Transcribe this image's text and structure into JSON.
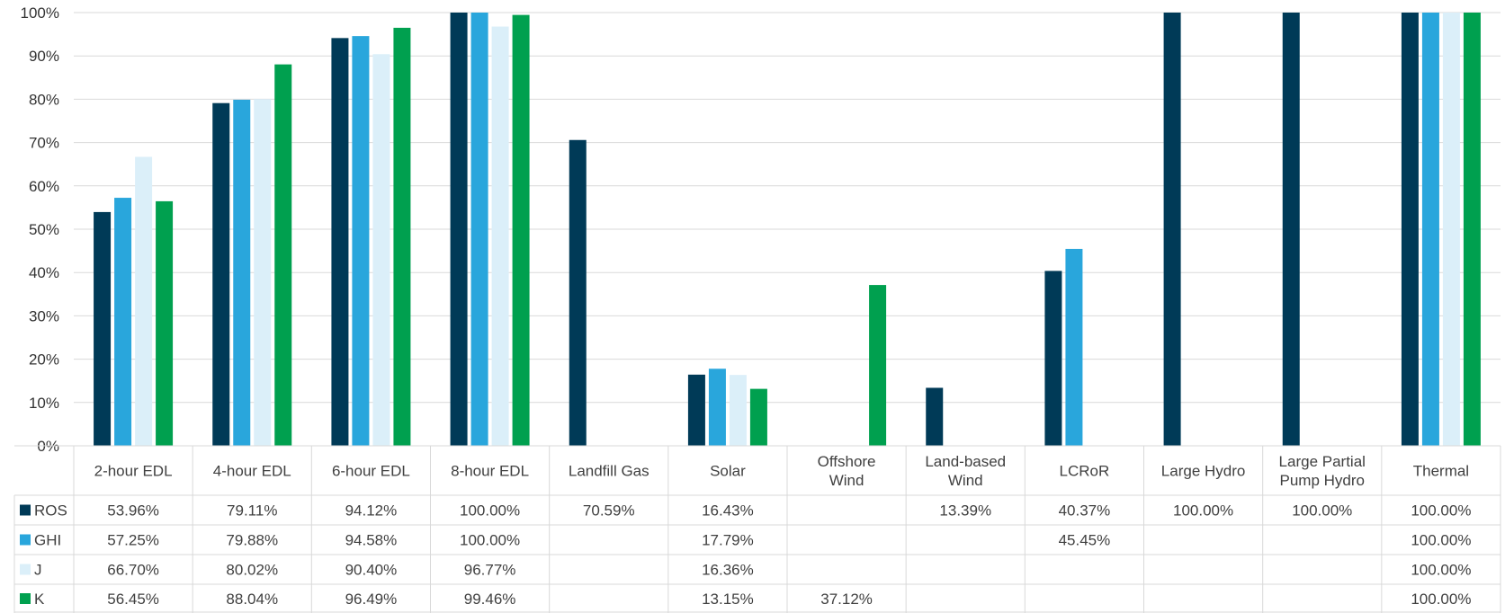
{
  "chart_data": {
    "type": "bar",
    "ylim": [
      0,
      100
    ],
    "y_ticks": [
      "0%",
      "10%",
      "20%",
      "30%",
      "40%",
      "50%",
      "60%",
      "70%",
      "80%",
      "90%",
      "100%"
    ],
    "grid": true,
    "legend_placement": "data-table",
    "categories": [
      [
        "2-hour EDL"
      ],
      [
        "4-hour EDL"
      ],
      [
        "6-hour EDL"
      ],
      [
        "8-hour EDL"
      ],
      [
        "Landfill Gas"
      ],
      [
        "Solar"
      ],
      [
        "Offshore",
        "Wind"
      ],
      [
        "Land-based",
        "Wind"
      ],
      [
        "LCRoR"
      ],
      [
        "Large Hydro"
      ],
      [
        "Large Partial",
        "Pump Hydro"
      ],
      [
        "Thermal"
      ]
    ],
    "series": [
      {
        "name": "ROS",
        "color": "#003a57",
        "values": [
          53.96,
          79.11,
          94.12,
          100.0,
          70.59,
          16.43,
          null,
          13.39,
          40.37,
          100.0,
          100.0,
          100.0
        ],
        "labels": [
          "53.96%",
          "79.11%",
          "94.12%",
          "100.00%",
          "70.59%",
          "16.43%",
          "",
          "13.39%",
          "40.37%",
          "100.00%",
          "100.00%",
          "100.00%"
        ]
      },
      {
        "name": "GHI",
        "color": "#29a6dc",
        "values": [
          57.25,
          79.88,
          94.58,
          100.0,
          null,
          17.79,
          null,
          null,
          45.45,
          null,
          null,
          100.0
        ],
        "labels": [
          "57.25%",
          "79.88%",
          "94.58%",
          "100.00%",
          "",
          "17.79%",
          "",
          "",
          "45.45%",
          "",
          "",
          "100.00%"
        ]
      },
      {
        "name": "J",
        "color": "#dbeff9",
        "values": [
          66.7,
          80.02,
          90.4,
          96.77,
          null,
          16.36,
          null,
          null,
          null,
          null,
          null,
          100.0
        ],
        "labels": [
          "66.70%",
          "80.02%",
          "90.40%",
          "96.77%",
          "",
          "16.36%",
          "",
          "",
          "",
          "",
          "",
          "100.00%"
        ]
      },
      {
        "name": "K",
        "color": "#00a04f",
        "values": [
          56.45,
          88.04,
          96.49,
          99.46,
          null,
          13.15,
          37.12,
          null,
          null,
          null,
          null,
          100.0
        ],
        "labels": [
          "56.45%",
          "88.04%",
          "96.49%",
          "99.46%",
          "",
          "13.15%",
          "37.12%",
          "",
          "",
          "",
          "",
          "100.00%"
        ]
      }
    ]
  }
}
